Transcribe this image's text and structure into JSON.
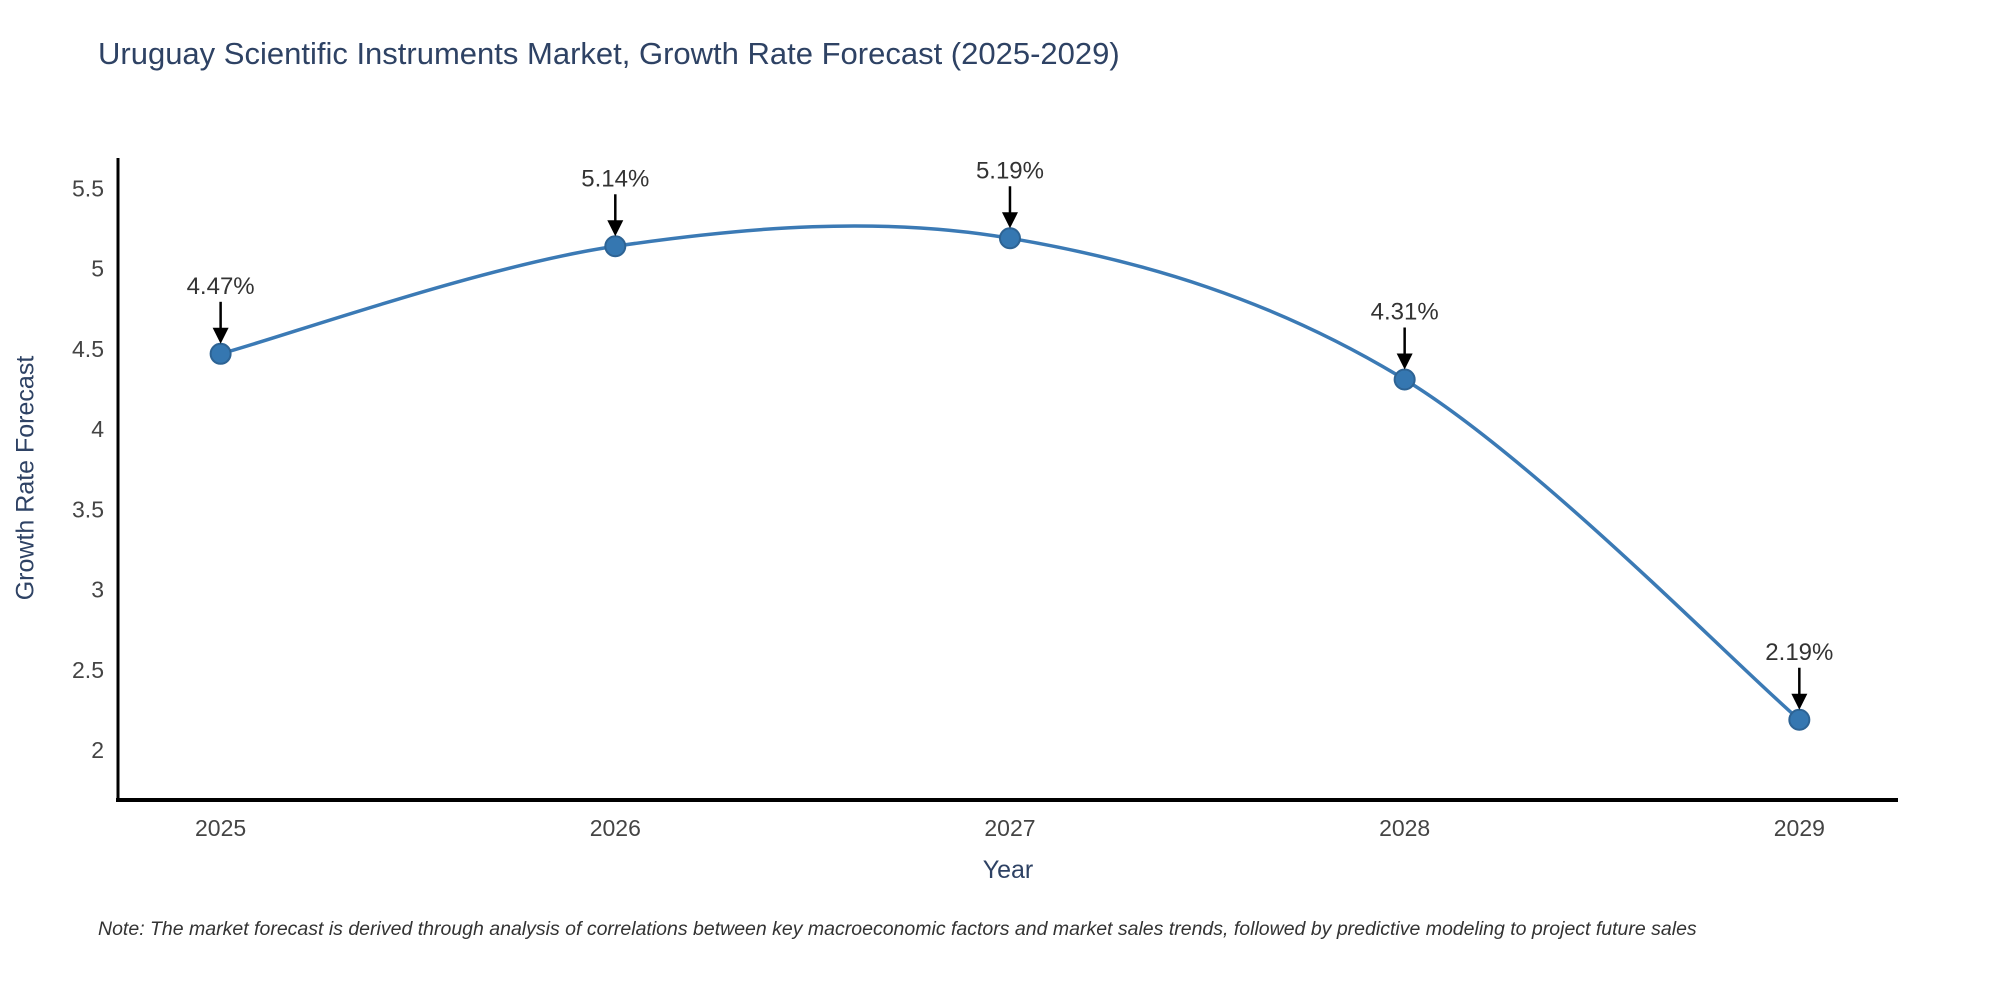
{
  "title": "Uruguay Scientific Instruments Market, Growth Rate Forecast (2025-2029)",
  "note": "Note: The market forecast is derived through analysis of correlations between key macroeconomic factors and market sales trends, followed by predictive modeling to project future sales",
  "chart_data": {
    "type": "line",
    "title": "Uruguay Scientific Instruments Market, Growth Rate Forecast (2025-2029)",
    "xlabel": "Year",
    "ylabel": "Growth Rate Forecast",
    "x": [
      2025,
      2026,
      2027,
      2028,
      2029
    ],
    "y": [
      4.47,
      5.14,
      5.19,
      4.31,
      2.19
    ],
    "point_labels": [
      "4.47%",
      "5.14%",
      "5.19%",
      "4.31%",
      "2.19%"
    ],
    "x_ticks": [
      "2025",
      "2026",
      "2027",
      "2028",
      "2029"
    ],
    "y_ticks": [
      "5.5",
      "5",
      "4.5",
      "4",
      "3.5",
      "3",
      "2.5",
      "2"
    ],
    "y_tick_values": [
      5.5,
      5,
      4.5,
      4,
      3.5,
      3,
      2.5,
      2
    ],
    "x_range": [
      2024.74,
      2029.25
    ],
    "y_range": [
      1.69,
      5.69
    ],
    "grid": false,
    "legend": false,
    "line_shape": "spline",
    "line_color": "#3b7ab5",
    "marker_color": "#3577b1",
    "marker_edge_color": "#2d6394",
    "annotation_arrow_color": "#000000",
    "axis_color": "#000000",
    "title_color": "#2e4264",
    "tick_color": "#444444"
  }
}
